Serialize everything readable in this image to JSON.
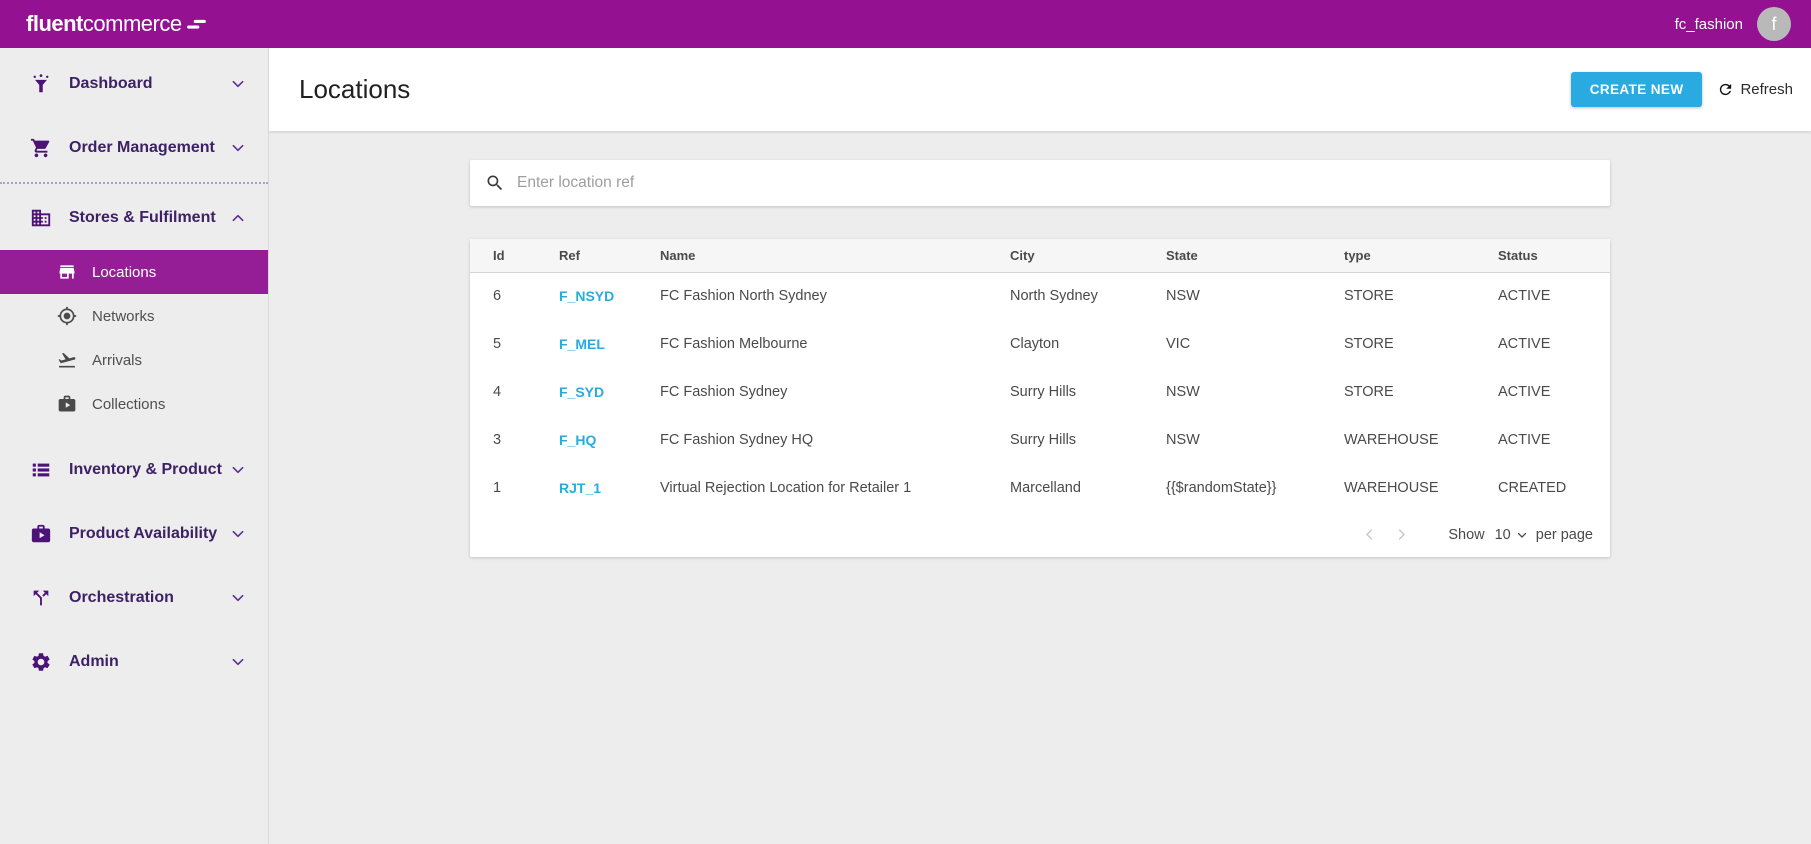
{
  "topbar": {
    "brand_bold": "fluent",
    "brand_light": "commerce",
    "account": "fc_fashion",
    "avatar_letter": "f"
  },
  "sidebar": {
    "items": [
      {
        "label": "Dashboard",
        "icon": "dashboard-icon",
        "level": "top",
        "chevron": "down"
      },
      {
        "label": "Order Management",
        "icon": "cart-icon",
        "level": "top",
        "chevron": "down",
        "divider_after": true
      },
      {
        "label": "Stores & Fulfilment",
        "icon": "building-icon",
        "level": "top",
        "chevron": "up",
        "expanded": true
      },
      {
        "label": "Locations",
        "icon": "store-icon",
        "level": "sub",
        "active": true
      },
      {
        "label": "Networks",
        "icon": "target-icon",
        "level": "sub"
      },
      {
        "label": "Arrivals",
        "icon": "plane-landing-icon",
        "level": "sub"
      },
      {
        "label": "Collections",
        "icon": "briefcase-play-icon",
        "level": "sub"
      },
      {
        "label": "Inventory & Product",
        "icon": "list-icon",
        "level": "top",
        "chevron": "down"
      },
      {
        "label": "Product Availability",
        "icon": "briefcase-play-icon",
        "level": "top",
        "chevron": "down"
      },
      {
        "label": "Orchestration",
        "icon": "split-icon",
        "level": "top",
        "chevron": "down"
      },
      {
        "label": "Admin",
        "icon": "gear-icon",
        "level": "top",
        "chevron": "down"
      }
    ]
  },
  "page": {
    "title": "Locations",
    "create_button": "CREATE NEW",
    "refresh_label": "Refresh"
  },
  "search": {
    "placeholder": "Enter location ref",
    "value": ""
  },
  "table": {
    "columns": [
      {
        "key": "id",
        "label": "Id"
      },
      {
        "key": "ref",
        "label": "Ref"
      },
      {
        "key": "name",
        "label": "Name"
      },
      {
        "key": "city",
        "label": "City"
      },
      {
        "key": "state",
        "label": "State"
      },
      {
        "key": "type",
        "label": "type"
      },
      {
        "key": "status",
        "label": "Status"
      }
    ],
    "rows": [
      {
        "id": "6",
        "ref": "F_NSYD",
        "name": "FC Fashion North Sydney",
        "city": "North Sydney",
        "state": "NSW",
        "type": "STORE",
        "status": "ACTIVE"
      },
      {
        "id": "5",
        "ref": "F_MEL",
        "name": "FC Fashion Melbourne",
        "city": "Clayton",
        "state": "VIC",
        "type": "STORE",
        "status": "ACTIVE"
      },
      {
        "id": "4",
        "ref": "F_SYD",
        "name": "FC Fashion Sydney",
        "city": "Surry Hills",
        "state": "NSW",
        "type": "STORE",
        "status": "ACTIVE"
      },
      {
        "id": "3",
        "ref": "F_HQ",
        "name": "FC Fashion Sydney HQ",
        "city": "Surry Hills",
        "state": "NSW",
        "type": "WAREHOUSE",
        "status": "ACTIVE"
      },
      {
        "id": "1",
        "ref": "RJT_1",
        "name": "Virtual Rejection Location for Retailer 1",
        "city": "Marcelland",
        "state": "{{$randomState}}",
        "type": "WAREHOUSE",
        "status": "CREATED"
      }
    ]
  },
  "pagination": {
    "show_label": "Show",
    "page_size": "10",
    "per_page_label": "per page"
  },
  "colors": {
    "brand_purple": "#941292",
    "active_item_purple": "#951d96",
    "accent_cyan": "#29abe2",
    "sidebar_bg": "#ededed",
    "content_bg": "#ededee"
  }
}
